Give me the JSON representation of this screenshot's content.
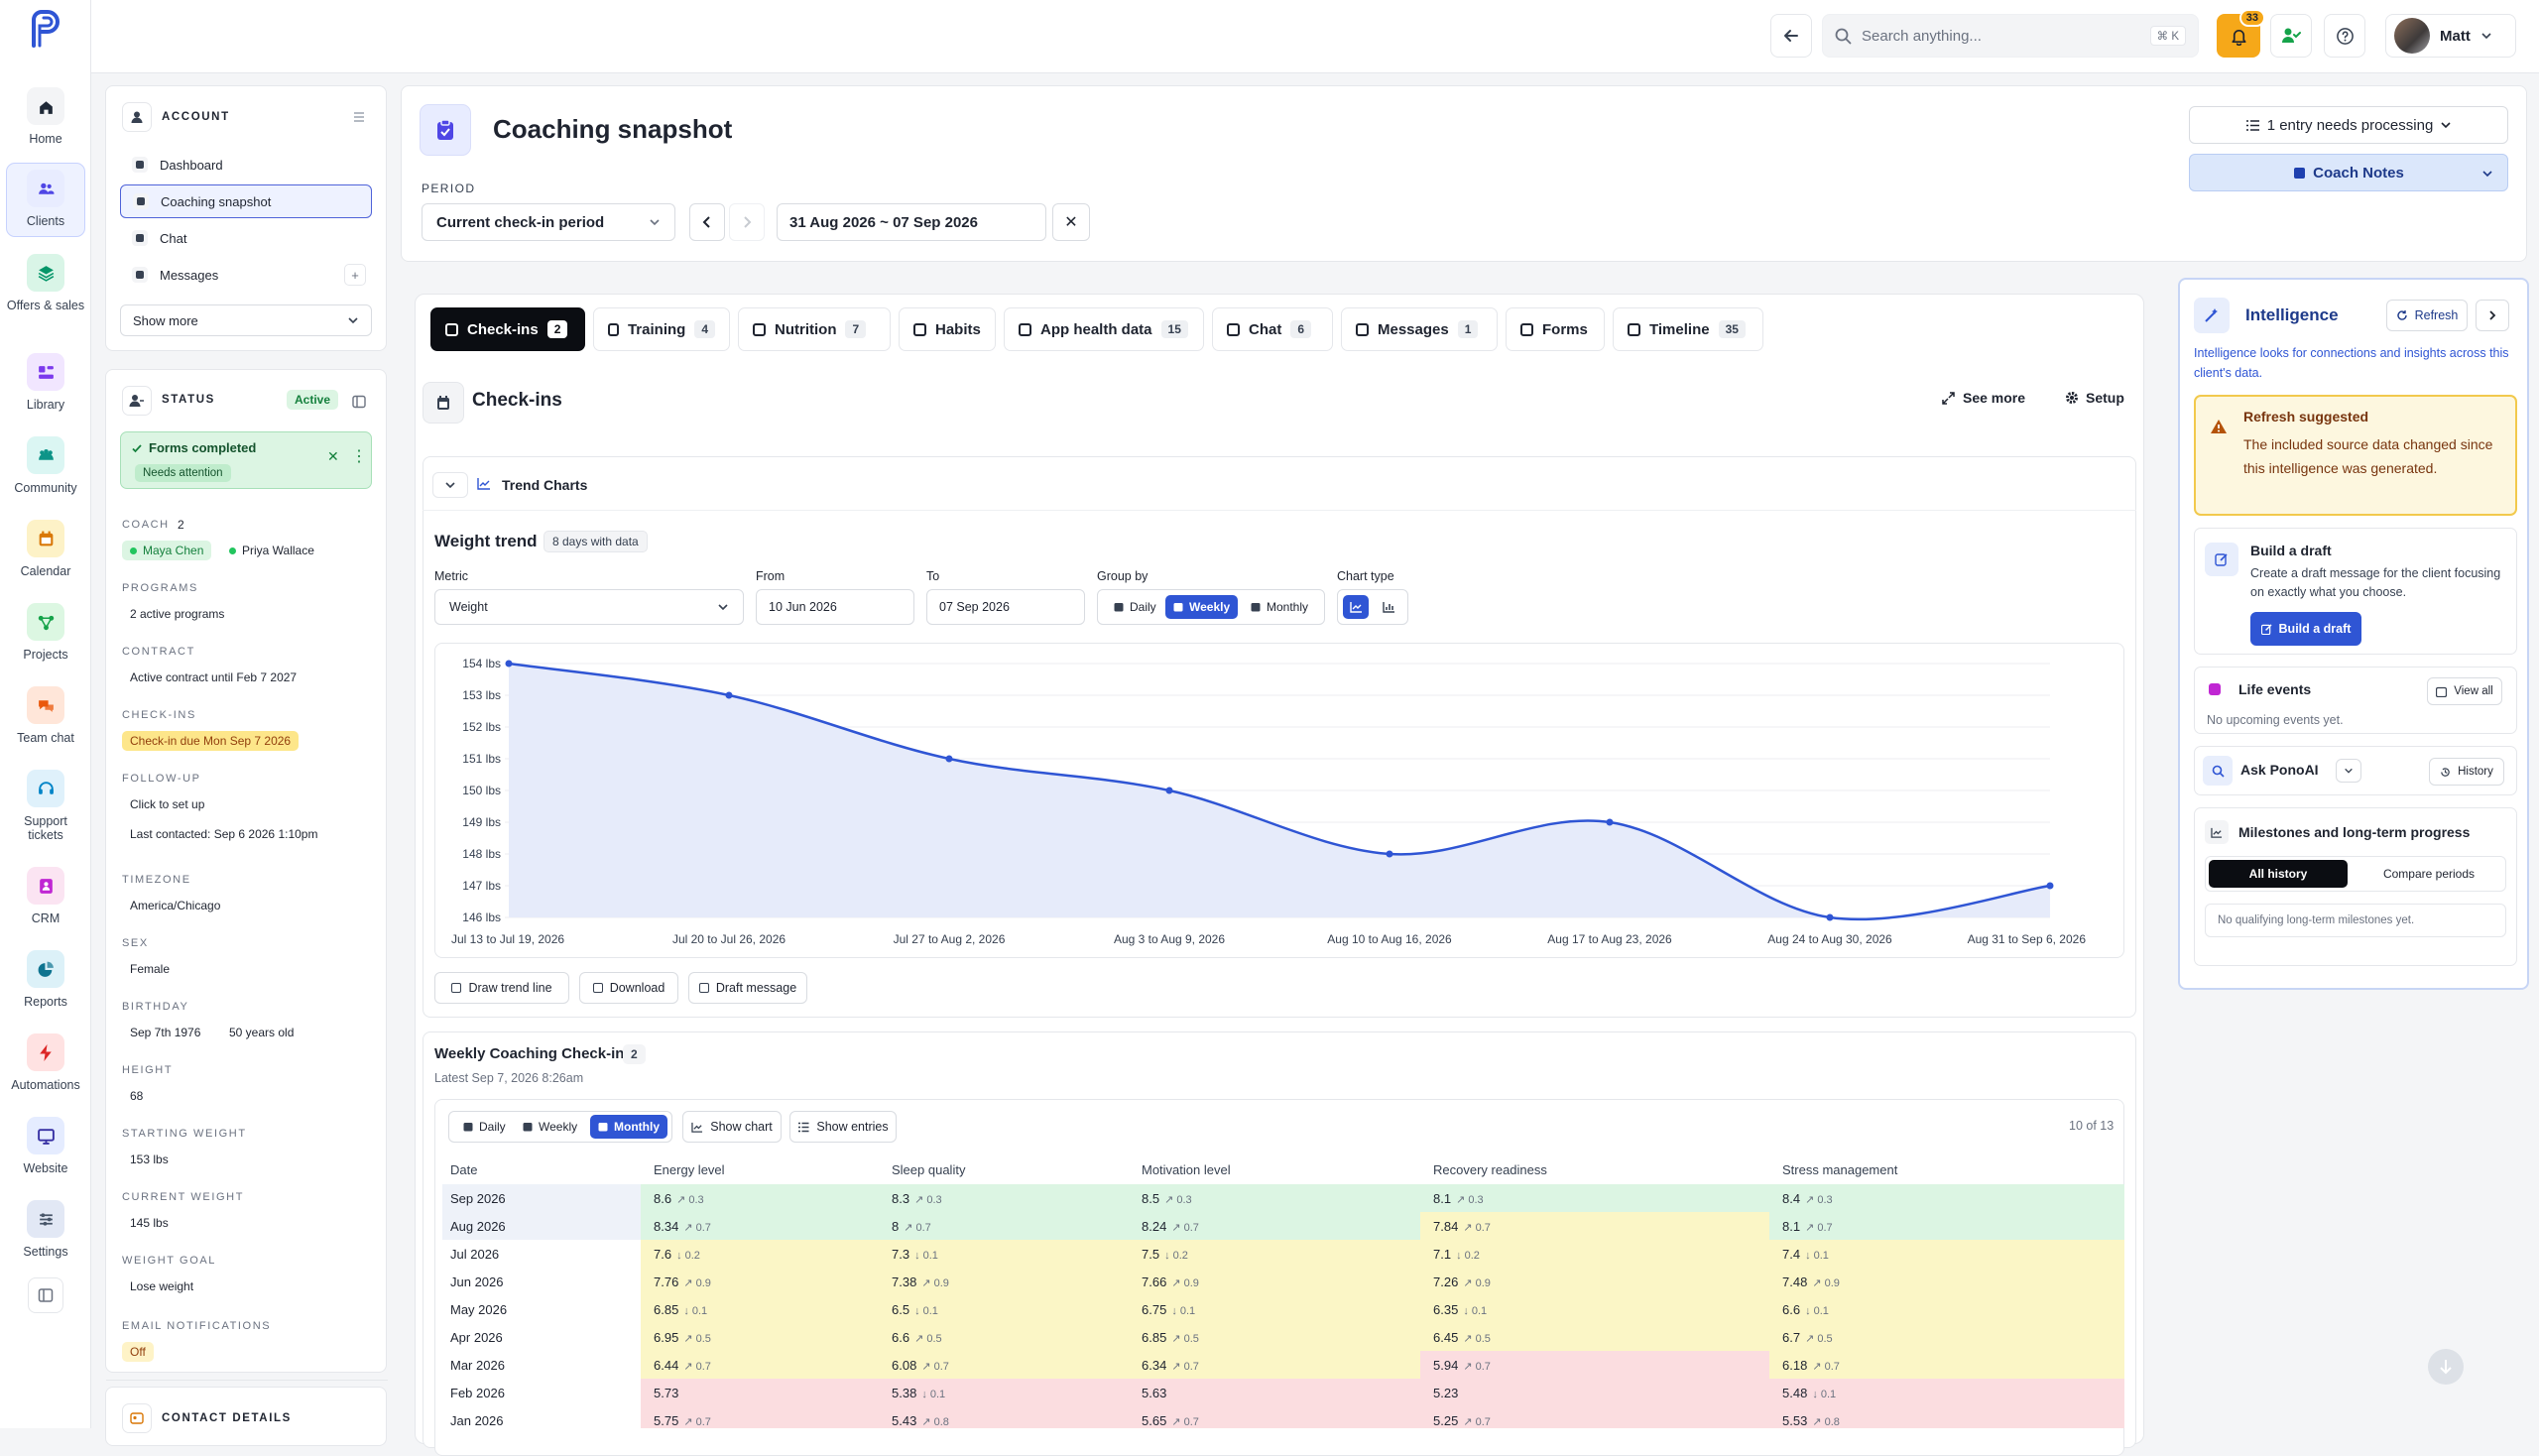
{
  "nav": [
    {
      "id": "home",
      "label": "Home",
      "icon": "home-icon",
      "bg": "#f3f4f6",
      "color": "#1f2937"
    },
    {
      "id": "clients",
      "label": "Clients",
      "icon": "users-icon",
      "bg": "#e8ecff",
      "color": "#4f46e5"
    },
    {
      "id": "offers",
      "label": "Offers & sales",
      "icon": "layers-icon",
      "bg": "#d9f5e7",
      "color": "#059669"
    },
    {
      "id": "library",
      "label": "Library",
      "icon": "library-icon",
      "bg": "#f1e6ff",
      "color": "#7c3aed"
    },
    {
      "id": "community",
      "label": "Community",
      "icon": "community-icon",
      "bg": "#dbf6f3",
      "color": "#0d9488"
    },
    {
      "id": "calendar",
      "label": "Calendar",
      "icon": "calendar-icon",
      "bg": "#fdf2c7",
      "color": "#d97706"
    },
    {
      "id": "projects",
      "label": "Projects",
      "icon": "projects-icon",
      "bg": "#dcf7e2",
      "color": "#16a34a"
    },
    {
      "id": "teamchat",
      "label": "Team chat",
      "icon": "team-chat-icon",
      "bg": "#ffe6d9",
      "color": "#ea580c"
    },
    {
      "id": "support",
      "label": "Support tickets",
      "icon": "headset-icon",
      "bg": "#dff1fb",
      "color": "#0284c7"
    },
    {
      "id": "crm",
      "label": "CRM",
      "icon": "crm-icon",
      "bg": "#fbe4f2",
      "color": "#c026d3"
    },
    {
      "id": "reports",
      "label": "Reports",
      "icon": "pie-chart-icon",
      "bg": "#dcf1f8",
      "color": "#0e7490"
    },
    {
      "id": "automations",
      "label": "Automations",
      "icon": "bolt-icon",
      "bg": "#ffe2e2",
      "color": "#dc2626"
    },
    {
      "id": "website",
      "label": "Website",
      "icon": "monitor-icon",
      "bg": "#e5ecff",
      "color": "#3730a3"
    },
    {
      "id": "settings",
      "label": "Settings",
      "icon": "sliders-icon",
      "bg": "#e2e8f5",
      "color": "#475569"
    }
  ],
  "topbar": {
    "search_placeholder": "Search anything...",
    "shortcut": "⌘ K",
    "notifications": "33",
    "user": "Matt"
  },
  "account": {
    "title": "ACCOUNT",
    "items": [
      "Dashboard",
      "Coaching snapshot",
      "Chat",
      "Messages"
    ],
    "show_more": "Show more"
  },
  "status": {
    "title": "STATUS",
    "badge": "Active",
    "alert_title": "Forms completed",
    "alert_tag": "Needs attention",
    "fields": [
      {
        "label": "COACH",
        "count": "2"
      },
      {
        "label": "PROGRAMS",
        "value": "2 active programs"
      },
      {
        "label": "CONTRACT",
        "value": "Active contract until Feb 7 2027"
      },
      {
        "label": "CHECK-INS",
        "value": "Check-in due Mon Sep 7 2026"
      },
      {
        "label": "FOLLOW-UP",
        "value": "Click to set up",
        "value2": "Last contacted: Sep 6 2026 1:10pm"
      },
      {
        "label": "TIMEZONE",
        "value": "America/Chicago"
      },
      {
        "label": "SEX",
        "value": "Female"
      },
      {
        "label": "BIRTHDAY",
        "value": "Sep 7th 1976",
        "value2": "50 years old"
      },
      {
        "label": "HEIGHT",
        "value": "68"
      },
      {
        "label": "STARTING WEIGHT",
        "value": "153 lbs"
      },
      {
        "label": "CURRENT WEIGHT",
        "value": "145 lbs"
      },
      {
        "label": "WEIGHT GOAL",
        "value": "Lose weight"
      },
      {
        "label": "EMAIL NOTIFICATIONS",
        "value": "Off"
      }
    ],
    "coaches": [
      "Maya Chen",
      "Priya Wallace"
    ],
    "contact_title": "CONTACT DETAILS"
  },
  "header": {
    "title": "Coaching snapshot",
    "period_label": "PERIOD",
    "period_select": "Current check-in period",
    "date_range": "31 Aug 2026 ~ 07 Sep 2026",
    "processing": "1 entry needs processing",
    "coach_notes": "Coach Notes"
  },
  "tabs": [
    {
      "label": "Check-ins",
      "count": "2",
      "icon": "clipboard-icon"
    },
    {
      "label": "Training",
      "count": "4",
      "icon": "dumbbell-icon"
    },
    {
      "label": "Nutrition",
      "count": "7",
      "icon": "utensils-icon"
    },
    {
      "label": "Habits",
      "count": "",
      "icon": "list-check-icon"
    },
    {
      "label": "App health data",
      "count": "15",
      "icon": "heart-pulse-icon"
    },
    {
      "label": "Chat",
      "count": "6",
      "icon": "chat-icon"
    },
    {
      "label": "Messages",
      "count": "1",
      "icon": "inbox-icon"
    },
    {
      "label": "Forms",
      "count": "",
      "icon": "form-icon"
    },
    {
      "label": "Timeline",
      "count": "35",
      "icon": "history-icon"
    }
  ],
  "checkins": {
    "title": "Check-ins",
    "see_more": "See more",
    "setup": "Setup",
    "trend_title": "Trend Charts"
  },
  "weight": {
    "title": "Weight trend",
    "days": "8 days with data",
    "metric_label": "Metric",
    "metric": "Weight",
    "from_label": "From",
    "from": "10 Jun 2026",
    "to_label": "To",
    "to": "07 Sep 2026",
    "group_label": "Group by",
    "groups": [
      "Daily",
      "Weekly",
      "Monthly"
    ],
    "chart_type_label": "Chart type"
  },
  "chart_data": {
    "type": "area",
    "categories": [
      "Jul 13 to Jul 19, 2026",
      "Jul 20 to Jul 26, 2026",
      "Jul 27 to Aug 2, 2026",
      "Aug 3 to Aug 9, 2026",
      "Aug 10 to Aug 16, 2026",
      "Aug 17 to Aug 23, 2026",
      "Aug 24 to Aug 30, 2026",
      "Aug 31 to Sep 6, 2026"
    ],
    "values": [
      154,
      153,
      151,
      150,
      148,
      149,
      146,
      147
    ],
    "ylim": [
      146,
      154
    ],
    "yticks": [
      "154 lbs",
      "153 lbs",
      "152 lbs",
      "151 lbs",
      "150 lbs",
      "149 lbs",
      "148 lbs",
      "147 lbs",
      "146 lbs"
    ],
    "color": "#2f55d4",
    "grid": true
  },
  "chart_actions": [
    "Draw trend line",
    "Download",
    "Draft message"
  ],
  "weekly": {
    "title": "Weekly Coaching Check-in",
    "count": "2",
    "latest": "Latest Sep 7, 2026 8:26am",
    "views": [
      "Daily",
      "Weekly",
      "Monthly"
    ],
    "show_chart": "Show chart",
    "show_entries": "Show entries",
    "paging": "10 of 13",
    "columns": [
      "Date",
      "Energy level",
      "Sleep quality",
      "Motivation level",
      "Recovery readiness",
      "Stress management"
    ],
    "rows": [
      {
        "date": "Sep 2026",
        "cells": [
          [
            "8.6",
            "↗ 0.3",
            "g"
          ],
          [
            "8.3",
            "↗ 0.3",
            "g"
          ],
          [
            "8.5",
            "↗ 0.3",
            "g"
          ],
          [
            "8.1",
            "↗ 0.3",
            "g"
          ],
          [
            "8.4",
            "↗ 0.3",
            "g"
          ]
        ]
      },
      {
        "date": "Aug 2026",
        "cells": [
          [
            "8.34",
            "↗ 0.7",
            "g"
          ],
          [
            "8",
            "↗ 0.7",
            "g"
          ],
          [
            "8.24",
            "↗ 0.7",
            "g"
          ],
          [
            "7.84",
            "↗ 0.7",
            "y"
          ],
          [
            "8.1",
            "↗ 0.7",
            "g"
          ]
        ]
      },
      {
        "date": "Jul 2026",
        "cells": [
          [
            "7.6",
            "↓ 0.2",
            "y"
          ],
          [
            "7.3",
            "↓ 0.1",
            "y"
          ],
          [
            "7.5",
            "↓ 0.2",
            "y"
          ],
          [
            "7.1",
            "↓ 0.2",
            "y"
          ],
          [
            "7.4",
            "↓ 0.1",
            "y"
          ]
        ]
      },
      {
        "date": "Jun 2026",
        "cells": [
          [
            "7.76",
            "↗ 0.9",
            "y"
          ],
          [
            "7.38",
            "↗ 0.9",
            "y"
          ],
          [
            "7.66",
            "↗ 0.9",
            "y"
          ],
          [
            "7.26",
            "↗ 0.9",
            "y"
          ],
          [
            "7.48",
            "↗ 0.9",
            "y"
          ]
        ]
      },
      {
        "date": "May 2026",
        "cells": [
          [
            "6.85",
            "↓ 0.1",
            "y"
          ],
          [
            "6.5",
            "↓ 0.1",
            "y"
          ],
          [
            "6.75",
            "↓ 0.1",
            "y"
          ],
          [
            "6.35",
            "↓ 0.1",
            "y"
          ],
          [
            "6.6",
            "↓ 0.1",
            "y"
          ]
        ]
      },
      {
        "date": "Apr 2026",
        "cells": [
          [
            "6.95",
            "↗ 0.5",
            "y"
          ],
          [
            "6.6",
            "↗ 0.5",
            "y"
          ],
          [
            "6.85",
            "↗ 0.5",
            "y"
          ],
          [
            "6.45",
            "↗ 0.5",
            "y"
          ],
          [
            "6.7",
            "↗ 0.5",
            "y"
          ]
        ]
      },
      {
        "date": "Mar 2026",
        "cells": [
          [
            "6.44",
            "↗ 0.7",
            "y"
          ],
          [
            "6.08",
            "↗ 0.7",
            "y"
          ],
          [
            "6.34",
            "↗ 0.7",
            "y"
          ],
          [
            "5.94",
            "↗ 0.7",
            "r"
          ],
          [
            "6.18",
            "↗ 0.7",
            "y"
          ]
        ]
      },
      {
        "date": "Feb 2026",
        "cells": [
          [
            "5.73",
            "",
            "r"
          ],
          [
            "5.38",
            "↓ 0.1",
            "r"
          ],
          [
            "5.63",
            "",
            "r"
          ],
          [
            "5.23",
            "",
            "r"
          ],
          [
            "5.48",
            "↓ 0.1",
            "r"
          ]
        ]
      },
      {
        "date": "Jan 2026",
        "cells": [
          [
            "5.75",
            "↗ 0.7",
            "r"
          ],
          [
            "5.43",
            "↗ 0.8",
            "r"
          ],
          [
            "5.65",
            "↗ 0.7",
            "r"
          ],
          [
            "5.25",
            "↗ 0.7",
            "r"
          ],
          [
            "5.53",
            "↗ 0.8",
            "r"
          ]
        ]
      }
    ]
  },
  "intel": {
    "title": "Intelligence",
    "refresh": "Refresh",
    "desc": "Intelligence looks for connections and insights across this client's data.",
    "warn_title": "Refresh suggested",
    "warn_text": "The included source data changed since this intelligence was generated.",
    "draft_title": "Build a draft",
    "draft_text": "Create a draft message for the client focusing on exactly what you choose.",
    "draft_btn": "Build a draft",
    "life_title": "Life events",
    "view_all": "View all",
    "life_empty": "No upcoming events yet.",
    "ask_title": "Ask PonoAI",
    "history": "History",
    "milestones_title": "Milestones and long-term progress",
    "all_history": "All history",
    "compare": "Compare periods",
    "milestones_empty": "No qualifying long-term milestones yet."
  }
}
